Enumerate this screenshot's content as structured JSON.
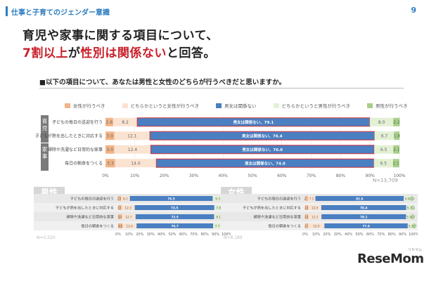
{
  "header": {
    "title": "仕事と子育てのジェンダー意識",
    "page_number": "9"
  },
  "headline": {
    "line1": "育児や家事に関する項目について、",
    "line2_red1": "7割以上",
    "line2_mid1": "が",
    "line2_red2": "性別は関係ない",
    "line2_mid2": "と回答。"
  },
  "question": "■以下の項目について、あなたは男性と女性のどちらが行うべきだと思いますか。",
  "legend": [
    {
      "label": "女性が行うべき",
      "color": "#f2b487"
    },
    {
      "label": "どちらかというと女性が行うべき",
      "color": "#fbe3d1"
    },
    {
      "label": "男女は関係ない",
      "color": "#4a7fc1"
    },
    {
      "label": "どちらかというと男性が行うべき",
      "color": "#e3f0d4"
    },
    {
      "label": "男性が行うべき",
      "color": "#a9cf8c"
    }
  ],
  "chart_data": [
    {
      "type": "bar",
      "orientation": "horizontal",
      "stacked": true,
      "groups": [
        {
          "label": "育児",
          "rows": [
            0,
            1
          ]
        },
        {
          "label": "家事",
          "rows": [
            2,
            3
          ]
        }
      ],
      "categories": [
        "子どもの毎日の送迎を行う",
        "子どもが熱を出したときに対応する",
        "掃除や洗濯など日常的な家事",
        "毎日の朝食をつくる"
      ],
      "series": [
        {
          "name": "女性が行うべき",
          "values": [
            2.6,
            3.0,
            3.0,
            3.3
          ]
        },
        {
          "name": "どちらかというと女性が行うべき",
          "values": [
            8.2,
            12.1,
            12.4,
            14.0
          ]
        },
        {
          "name": "男女は関係ない",
          "values": [
            79.1,
            76.4,
            76.0,
            74.0
          ]
        },
        {
          "name": "どちらかというと男性が行うべき",
          "values": [
            8.0,
            6.7,
            6.5,
            6.5
          ]
        },
        {
          "name": "男性が行うべき",
          "values": [
            2.2,
            1.8,
            2.1,
            2.1
          ]
        }
      ],
      "bar_label_prefix": "男女は関係ない、",
      "xlim": [
        0,
        100
      ],
      "xticks": [
        "0%",
        "10%",
        "20%",
        "30%",
        "40%",
        "50%",
        "60%",
        "70%",
        "80%",
        "90%",
        "100%"
      ],
      "n_label": "N=13,709"
    },
    {
      "type": "bar",
      "orientation": "horizontal",
      "stacked": true,
      "title": "男性",
      "categories": [
        "子どもの毎日の送迎を行う",
        "子どもが熱を出したときに対応する",
        "掃除や洗濯など日常的な家事",
        "毎日の朝食をつくる"
      ],
      "series": [
        {
          "name": "女性が行うべき",
          "values": [
            2.6,
            3.0,
            3.4,
            4.0
          ]
        },
        {
          "name": "どちらかというと女性が行うべき",
          "values": [
            8.2,
            12.3,
            12.7,
            13.0
          ]
        },
        {
          "name": "男女は関係ない",
          "values": [
            76.5,
            73.5,
            72.5,
            70.7
          ]
        },
        {
          "name": "どちらかというと男性が行うべき",
          "values": [
            9.3,
            7.8,
            8.1,
            7.7
          ]
        },
        {
          "name": "男性が行うべき",
          "values": [
            3.7,
            2.1,
            2.4,
            2.6
          ]
        }
      ],
      "xlim": [
        0,
        100
      ],
      "xticks": [
        "0%",
        "10%",
        "20%",
        "30%",
        "40%",
        "50%",
        "60%",
        "70%",
        "80%",
        "90%",
        "100%"
      ],
      "n_label": "N=5,520"
    },
    {
      "type": "bar",
      "orientation": "horizontal",
      "stacked": true,
      "title": "女性",
      "categories": [
        "子どもの毎日の送迎を行う",
        "子どもが熱を出したときに対応する",
        "掃除や洗濯など日常的な家事",
        "毎日の朝食をつくる"
      ],
      "series": [
        {
          "name": "女性が行うべき",
          "values": [
            2.3,
            2.8,
            2.8,
            2.7
          ]
        },
        {
          "name": "どちらかというと女性が行うべき",
          "values": [
            7.1,
            12.0,
            12.2,
            15.0
          ]
        },
        {
          "name": "男女は関係ない",
          "values": [
            81.6,
            78.4,
            78.1,
            77.0
          ]
        },
        {
          "name": "どちらかというと男性が行うべき",
          "values": [
            6.8,
            5.7,
            5.3,
            5.2
          ]
        },
        {
          "name": "男性が行うべき",
          "values": [
            1.4,
            1.1,
            1.7,
            1.7
          ]
        }
      ],
      "xlim": [
        0,
        100
      ],
      "xticks": [
        "0%",
        "10%",
        "20%",
        "30%",
        "40%",
        "50%",
        "60%",
        "70%",
        "80%",
        "90%",
        "100%"
      ],
      "n_label": "N=8,189"
    }
  ],
  "brand": {
    "logo_text": "ReseMom",
    "kana": "リセマム"
  }
}
